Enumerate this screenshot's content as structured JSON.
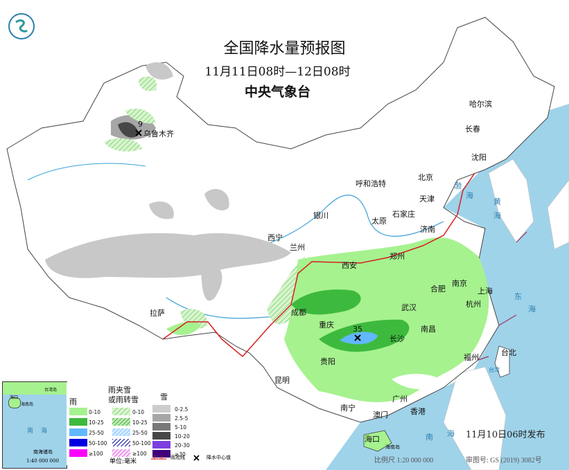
{
  "header": {
    "title": "全国降水量预报图",
    "period": "11月11日08时—12日08时",
    "agency": "中央气象台"
  },
  "cities": [
    {
      "name": "乌鲁木齐"
    },
    {
      "name": "哈尔滨"
    },
    {
      "name": "长春"
    },
    {
      "name": "沈阳"
    },
    {
      "name": "北京"
    },
    {
      "name": "天津"
    },
    {
      "name": "呼和浩特"
    },
    {
      "name": "石家庄"
    },
    {
      "name": "太原"
    },
    {
      "name": "济南"
    },
    {
      "name": "银川"
    },
    {
      "name": "西宁"
    },
    {
      "name": "兰州"
    },
    {
      "name": "西安"
    },
    {
      "name": "郑州"
    },
    {
      "name": "合肥"
    },
    {
      "name": "南京"
    },
    {
      "name": "上海"
    },
    {
      "name": "杭州"
    },
    {
      "name": "武汉"
    },
    {
      "name": "成都"
    },
    {
      "name": "重庆"
    },
    {
      "name": "长沙"
    },
    {
      "name": "南昌"
    },
    {
      "name": "福州"
    },
    {
      "name": "台北"
    },
    {
      "name": "贵阳"
    },
    {
      "name": "昆明"
    },
    {
      "name": "拉萨"
    },
    {
      "name": "南宁"
    },
    {
      "name": "广州"
    },
    {
      "name": "澳门"
    },
    {
      "name": "香港"
    },
    {
      "name": "海口"
    }
  ],
  "seas": {
    "bohai": "渤",
    "bohai2": "海",
    "huanghai": "黄",
    "huanghai2": "海",
    "donghai": "东",
    "donghai2": "海",
    "taiwan": "台湾",
    "nanhai": "南",
    "nanhai2": "海",
    "hainan": "海南岛"
  },
  "precip_centers": [
    {
      "value": "9",
      "near": "乌鲁木齐"
    },
    {
      "value": "35",
      "near": "长沙"
    }
  ],
  "legend": {
    "rain_title": "雨",
    "mix_title": "雨夹雪\n或雨转雪",
    "mix_title_1": "雨夹雪",
    "mix_title_2": "或雨转雪",
    "snow_title": "雪",
    "rain": [
      {
        "label": "0-10",
        "color": "#a6f28f"
      },
      {
        "label": "10-25",
        "color": "#3dba3d"
      },
      {
        "label": "25-50",
        "color": "#61b8ff"
      },
      {
        "label": "50-100",
        "color": "#0000e1"
      },
      {
        "label": "≥100",
        "color": "#fa00fa"
      }
    ],
    "mix": [
      {
        "label": "0-10",
        "color": "#a6f28f"
      },
      {
        "label": "10-25",
        "color": "#3dba3d"
      },
      {
        "label": "25-50",
        "color": "#61b8ff"
      },
      {
        "label": "50-100",
        "color": "#0000e1"
      },
      {
        "label": "≥100",
        "color": "#fa00fa"
      }
    ],
    "snow": [
      {
        "label": "0-2.5",
        "color": "#cccccc"
      },
      {
        "label": "2.5-5",
        "color": "#a6a6a6"
      },
      {
        "label": "5-10",
        "color": "#787878"
      },
      {
        "label": "10-20",
        "color": "#474747"
      },
      {
        "label": "20-30",
        "color": "#7c3fe0"
      },
      {
        "label": "≥30",
        "color": "#40007a"
      }
    ],
    "unit": "单位:毫米",
    "freezing_line": "雨凇线",
    "center_label": "降水中心值"
  },
  "inset": {
    "title": "南海诸岛",
    "scale": "1:40 000 000",
    "sea1": "南",
    "sea2": "海",
    "label_taiwan": "台湾岛",
    "label_haikou": "海口",
    "label_hainan": "海南岛"
  },
  "footer": {
    "issued": "11月10日06时发布",
    "scale": "比例尺 1:20 000 000",
    "approval": "审图号: GS (2019) 3082号"
  }
}
